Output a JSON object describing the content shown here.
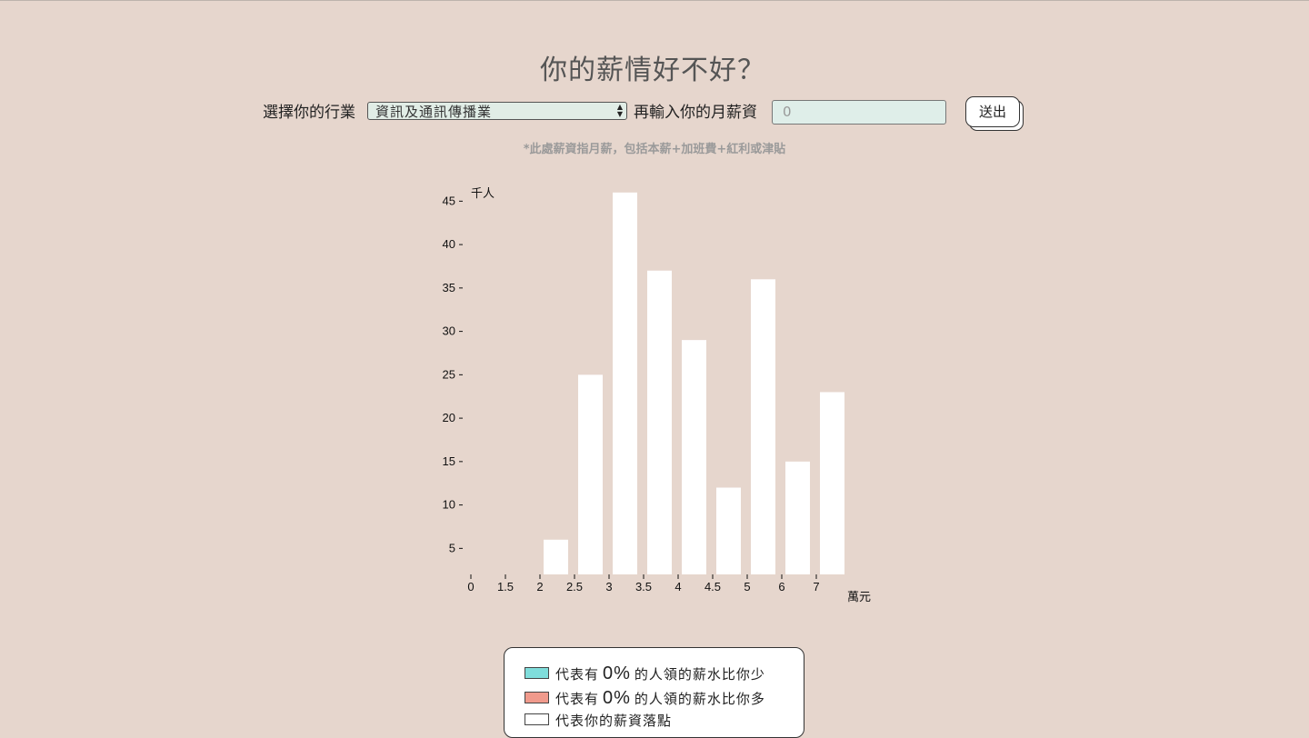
{
  "page": {
    "title": "你的薪情好不好？"
  },
  "controls": {
    "industry_label": "選擇你的行業",
    "industry_selected": "資訊及通訊傳播業",
    "salary_label": "再輸入你的月薪資",
    "salary_value": "0",
    "submit_label": "送出"
  },
  "note": "*此處薪資指月薪，包括本薪+加班費+紅利或津貼",
  "legend": {
    "less": {
      "prefix": "代表有",
      "pct": "0%",
      "suffix": "的人領的薪水比你少",
      "color": "#7fdddb"
    },
    "more": {
      "prefix": "代表有",
      "pct": "0%",
      "suffix": "的人領的薪水比你多",
      "color": "#f09a8c"
    },
    "yours": {
      "text": "代表你的薪資落點",
      "color": "#ffffff"
    }
  },
  "chart_data": {
    "type": "bar",
    "x_ticks": [
      "0",
      "1.5",
      "2",
      "2.5",
      "3",
      "3.5",
      "4",
      "4.5",
      "5",
      "6",
      "7"
    ],
    "y_ticks": [
      5,
      10,
      15,
      20,
      25,
      30,
      35,
      40,
      45
    ],
    "y_unit": "千人",
    "x_unit": "萬元",
    "categories": [
      "2",
      "2.5",
      "3",
      "3.5",
      "4",
      "4.5",
      "5",
      "6",
      "7"
    ],
    "values": [
      4,
      23,
      44,
      35,
      27,
      10,
      34,
      13,
      21
    ],
    "bar_color": "#ffffff",
    "grid": false
  }
}
